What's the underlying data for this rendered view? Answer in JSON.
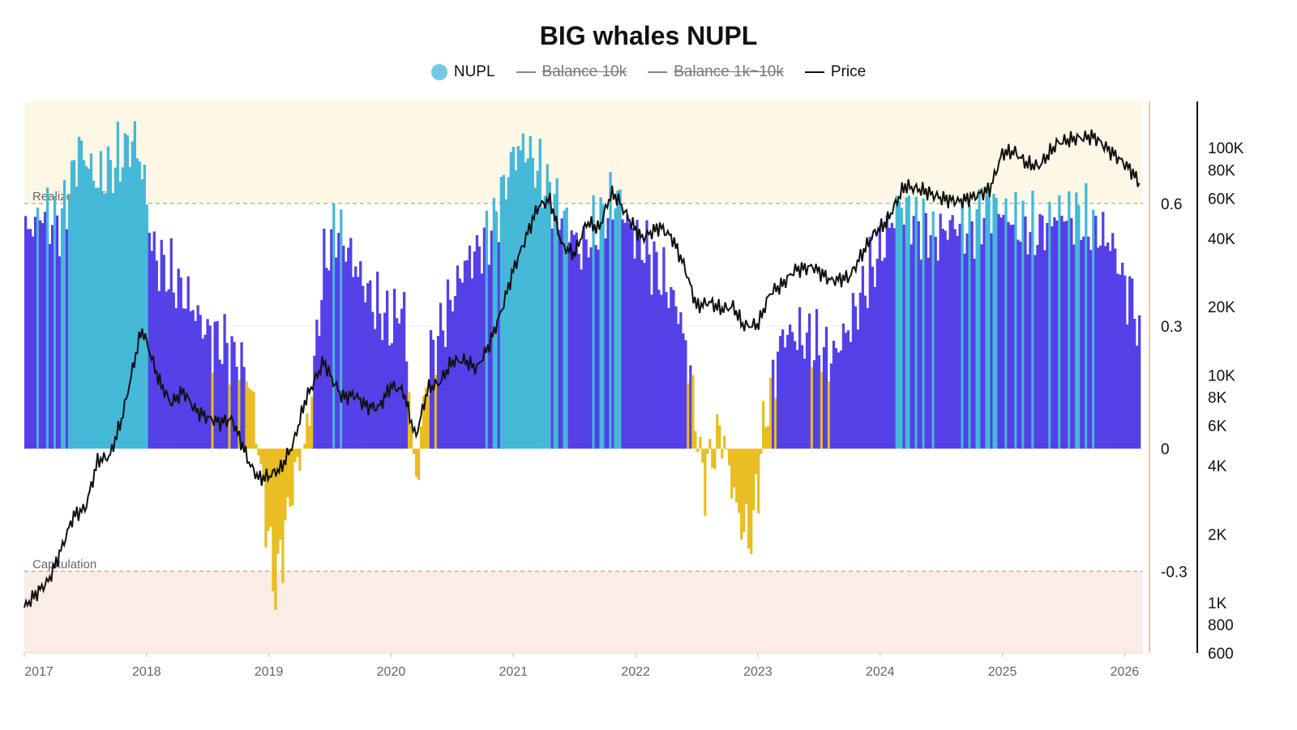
{
  "chart_data": {
    "type": "bar",
    "title": "BIG whales NUPL",
    "legend": [
      {
        "name": "NUPL",
        "marker": "dot",
        "color": "#73c8e6",
        "enabled": true
      },
      {
        "name": "Balance 10k",
        "marker": "line",
        "color": "#888888",
        "enabled": false
      },
      {
        "name": "Balance 1k~10k",
        "marker": "line",
        "color": "#888888",
        "enabled": false
      },
      {
        "name": "Price",
        "marker": "line",
        "color": "#111111",
        "enabled": true
      }
    ],
    "x_range": [
      2017.0,
      2026.15
    ],
    "x_ticks": [
      {
        "value": 2017.0,
        "label": "2017"
      },
      {
        "value": 2018.0,
        "label": "2018"
      },
      {
        "value": 2019.0,
        "label": "2019"
      },
      {
        "value": 2020.0,
        "label": "2020"
      },
      {
        "value": 2021.0,
        "label": "2021"
      },
      {
        "value": 2022.0,
        "label": "2022"
      },
      {
        "value": 2023.0,
        "label": "2023"
      },
      {
        "value": 2024.0,
        "label": "2024"
      },
      {
        "value": 2025.0,
        "label": "2025"
      },
      {
        "value": 2026.0,
        "label": "2026"
      }
    ],
    "nupl_axis": {
      "ylim": [
        -0.5,
        0.85
      ],
      "ticks": [
        0.6,
        0.3,
        0,
        -0.3
      ],
      "tick_labels": [
        "0.6",
        "0.3",
        "0",
        "-0.3"
      ]
    },
    "price_axis": {
      "scale": "log",
      "ylim": [
        600,
        160000
      ],
      "ticks": [
        100000,
        80000,
        60000,
        40000,
        20000,
        10000,
        8000,
        6000,
        4000,
        2000,
        1000,
        800,
        600
      ],
      "tick_labels": [
        "100K",
        "80K",
        "60K",
        "40K",
        "20K",
        "10K",
        "8K",
        "6K",
        "4K",
        "2K",
        "1K",
        "800",
        "600"
      ]
    },
    "zones": [
      {
        "label": "Realized profiy",
        "from": 0.6,
        "to": 0.85,
        "color": "#fdf7e6",
        "line_color": "#8a9a7a"
      },
      {
        "label": "Capitulation",
        "from": -0.5,
        "to": -0.3,
        "color": "#fbece6",
        "line_color": "#c8897e"
      }
    ],
    "colors": {
      "positive": "#5540e8",
      "high": "#45b8d8",
      "negative": "#e9bd23",
      "price": "#111111",
      "divider": "#e9cf7a"
    },
    "color_rule": "cyan when NUPL >= 0.6 zone region, gold when NUPL <= 0.2 near zero or negative, purple otherwise",
    "nupl_series": {
      "x": [
        2017.0,
        2017.15,
        2017.3,
        2017.45,
        2017.6,
        2017.75,
        2017.9,
        2017.98,
        2018.05,
        2018.2,
        2018.35,
        2018.5,
        2018.65,
        2018.8,
        2018.87,
        2018.95,
        2019.05,
        2019.2,
        2019.32,
        2019.45,
        2019.55,
        2019.7,
        2019.85,
        2020.0,
        2020.1,
        2020.2,
        2020.3,
        2020.45,
        2020.6,
        2020.75,
        2020.85,
        2021.0,
        2021.1,
        2021.2,
        2021.35,
        2021.45,
        2021.55,
        2021.7,
        2021.85,
        2021.95,
        2022.1,
        2022.25,
        2022.35,
        2022.45,
        2022.55,
        2022.7,
        2022.85,
        2022.95,
        2023.05,
        2023.2,
        2023.3,
        2023.45,
        2023.6,
        2023.75,
        2023.9,
        2024.0,
        2024.15,
        2024.3,
        2024.45,
        2024.6,
        2024.75,
        2024.9,
        2025.0,
        2025.15,
        2025.3,
        2025.45,
        2025.6,
        2025.75,
        2025.9,
        2026.0,
        2026.08,
        2026.13
      ],
      "y": [
        0.52,
        0.58,
        0.55,
        0.74,
        0.65,
        0.7,
        0.76,
        0.66,
        0.48,
        0.42,
        0.36,
        0.28,
        0.25,
        0.2,
        0.12,
        -0.1,
        -0.35,
        -0.08,
        0.05,
        0.45,
        0.55,
        0.45,
        0.36,
        0.3,
        0.36,
        -0.1,
        0.2,
        0.33,
        0.45,
        0.5,
        0.56,
        0.72,
        0.74,
        0.68,
        0.6,
        0.55,
        0.48,
        0.55,
        0.62,
        0.54,
        0.48,
        0.4,
        0.34,
        0.18,
        -0.08,
        0.05,
        -0.18,
        -0.22,
        0.06,
        0.28,
        0.28,
        0.26,
        0.22,
        0.3,
        0.42,
        0.48,
        0.6,
        0.56,
        0.52,
        0.55,
        0.54,
        0.6,
        0.58,
        0.55,
        0.53,
        0.58,
        0.57,
        0.54,
        0.5,
        0.4,
        0.36,
        0.22
      ]
    },
    "price_series": {
      "x": [
        2017.0,
        2017.1,
        2017.2,
        2017.3,
        2017.4,
        2017.5,
        2017.6,
        2017.7,
        2017.8,
        2017.9,
        2017.96,
        2018.0,
        2018.1,
        2018.2,
        2018.3,
        2018.4,
        2018.5,
        2018.6,
        2018.7,
        2018.85,
        2018.92,
        2019.0,
        2019.1,
        2019.2,
        2019.3,
        2019.45,
        2019.5,
        2019.6,
        2019.7,
        2019.8,
        2019.9,
        2020.0,
        2020.1,
        2020.2,
        2020.3,
        2020.4,
        2020.5,
        2020.6,
        2020.7,
        2020.8,
        2020.9,
        2021.0,
        2021.1,
        2021.2,
        2021.3,
        2021.4,
        2021.5,
        2021.6,
        2021.7,
        2021.8,
        2021.85,
        2021.95,
        2022.05,
        2022.2,
        2022.3,
        2022.4,
        2022.5,
        2022.6,
        2022.7,
        2022.8,
        2022.88,
        2023.0,
        2023.1,
        2023.2,
        2023.3,
        2023.45,
        2023.6,
        2023.75,
        2023.85,
        2023.95,
        2024.05,
        2024.2,
        2024.35,
        2024.5,
        2024.65,
        2024.8,
        2024.9,
        2025.0,
        2025.1,
        2025.2,
        2025.3,
        2025.45,
        2025.6,
        2025.75,
        2025.85,
        2025.95,
        2026.05,
        2026.12
      ],
      "y": [
        950,
        1100,
        1250,
        1700,
        2400,
        2600,
        4200,
        4400,
        6500,
        11500,
        16000,
        14000,
        9500,
        7500,
        8500,
        7000,
        6500,
        6200,
        6400,
        4000,
        3500,
        3600,
        3900,
        5000,
        7800,
        11500,
        10000,
        8000,
        8200,
        7300,
        7200,
        9000,
        8500,
        5300,
        8700,
        9300,
        11500,
        11600,
        10700,
        13500,
        19000,
        29000,
        40000,
        55000,
        59000,
        37000,
        34000,
        47000,
        44000,
        63000,
        60000,
        48000,
        40000,
        45000,
        40000,
        30000,
        20000,
        21000,
        19500,
        20000,
        16500,
        16600,
        23000,
        25000,
        29000,
        30000,
        26000,
        27000,
        34000,
        42000,
        47000,
        68000,
        65000,
        60000,
        58000,
        62000,
        66000,
        95000,
        96000,
        85000,
        83000,
        105000,
        110000,
        112000,
        100000,
        90000,
        80000,
        70000
      ]
    }
  }
}
